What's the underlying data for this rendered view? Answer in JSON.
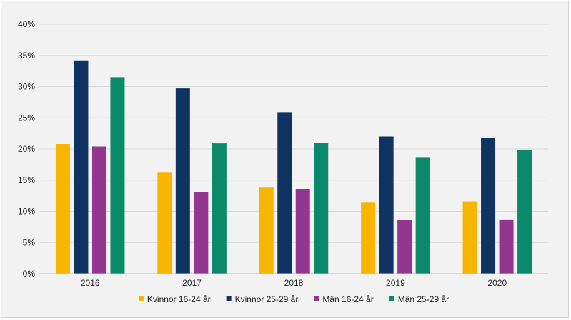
{
  "chart_data": {
    "type": "bar",
    "categories": [
      "2016",
      "2017",
      "2018",
      "2019",
      "2020"
    ],
    "series": [
      {
        "name": "Kvinnor 16-24 år",
        "color": "#f7b500",
        "values": [
          20.8,
          16.2,
          13.8,
          11.4,
          11.6
        ]
      },
      {
        "name": "Kvinnor 25-29 år",
        "color": "#0f3461",
        "values": [
          34.2,
          29.7,
          25.9,
          22.0,
          21.8
        ]
      },
      {
        "name": "Män 16-24 år",
        "color": "#93368f",
        "values": [
          20.4,
          13.1,
          13.6,
          8.6,
          8.7
        ]
      },
      {
        "name": "Män 25-29 år",
        "color": "#0a8a6a",
        "values": [
          31.5,
          20.9,
          21.0,
          18.7,
          19.8
        ]
      }
    ],
    "yticks": [
      "0%",
      "5%",
      "10%",
      "15%",
      "20%",
      "25%",
      "30%",
      "35%",
      "40%"
    ],
    "ylim": [
      0,
      40
    ],
    "y_unit": "%",
    "grid": true,
    "legend_position": "bottom"
  }
}
